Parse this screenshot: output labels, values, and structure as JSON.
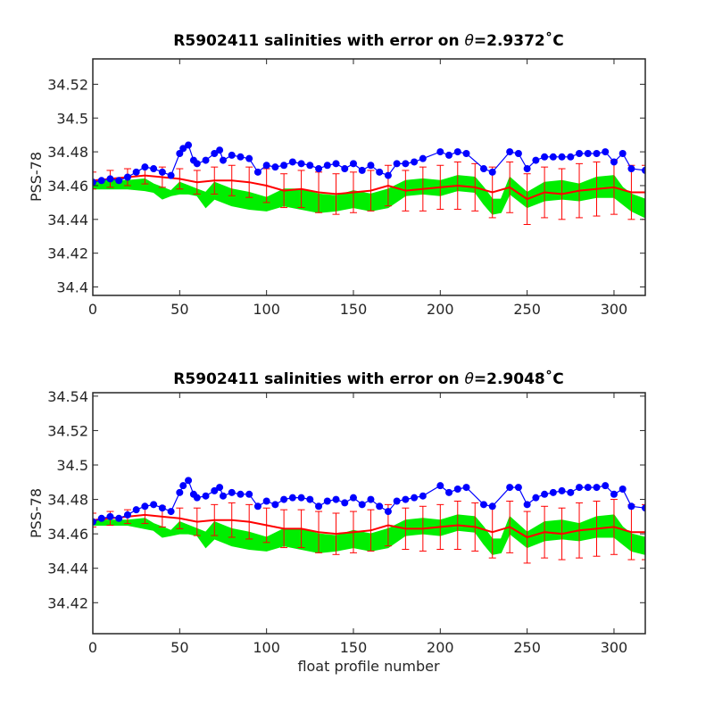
{
  "chart_data": [
    {
      "type": "scatter",
      "title": "R5902411 salinities with error on θ=2.9372˚C",
      "title_prefix": "R5902411 salinities with error on ",
      "title_theta": "θ",
      "title_suffix": "=2.9372˚C",
      "xlabel": "",
      "ylabel": "PSS-78",
      "xlim": [
        0,
        318
      ],
      "ylim": [
        34.395,
        34.535
      ],
      "xticks": [
        0,
        50,
        100,
        150,
        200,
        250,
        300
      ],
      "xtick_labels": [
        "0",
        "50",
        "100",
        "150",
        "200",
        "250",
        "300"
      ],
      "yticks": [
        34.4,
        34.42,
        34.44,
        34.46,
        34.48,
        34.5,
        34.52
      ],
      "ytick_labels": [
        "34.4",
        "34.42",
        "34.44",
        "34.46",
        "34.48",
        "34.5",
        "34.52"
      ],
      "grid": false,
      "colors": {
        "float_salinity": "#0000ff",
        "mapped_salinity": "#ff0000",
        "error_envelope": "#00ee00"
      },
      "float_salinity": {
        "x": [
          0,
          5,
          10,
          15,
          20,
          25,
          30,
          35,
          40,
          45,
          50,
          52,
          55,
          58,
          60,
          65,
          70,
          73,
          75,
          80,
          85,
          90,
          95,
          100,
          105,
          110,
          115,
          120,
          125,
          130,
          135,
          140,
          145,
          150,
          155,
          160,
          165,
          170,
          175,
          180,
          185,
          190,
          200,
          205,
          210,
          215,
          225,
          230,
          240,
          245,
          250,
          255,
          260,
          265,
          270,
          275,
          280,
          285,
          290,
          295,
          300,
          305,
          310,
          318
        ],
        "y": [
          34.462,
          34.463,
          34.464,
          34.463,
          34.465,
          34.468,
          34.471,
          34.47,
          34.468,
          34.466,
          34.479,
          34.482,
          34.484,
          34.475,
          34.473,
          34.475,
          34.479,
          34.481,
          34.475,
          34.478,
          34.477,
          34.476,
          34.468,
          34.472,
          34.471,
          34.472,
          34.474,
          34.473,
          34.472,
          34.47,
          34.472,
          34.473,
          34.47,
          34.473,
          34.469,
          34.472,
          34.468,
          34.466,
          34.473,
          34.473,
          34.474,
          34.476,
          34.48,
          34.478,
          34.48,
          34.479,
          34.47,
          34.468,
          34.48,
          34.479,
          34.47,
          34.475,
          34.477,
          34.477,
          34.477,
          34.477,
          34.479,
          34.479,
          34.479,
          34.48,
          34.474,
          34.479,
          34.47,
          34.469
        ]
      },
      "mapped_salinity": {
        "x": [
          0,
          10,
          20,
          30,
          40,
          50,
          60,
          70,
          80,
          90,
          100,
          110,
          120,
          130,
          140,
          150,
          160,
          170,
          180,
          190,
          200,
          210,
          220,
          230,
          240,
          250,
          260,
          270,
          280,
          290,
          300,
          310,
          318
        ],
        "y": [
          34.463,
          34.464,
          34.465,
          34.466,
          34.465,
          34.464,
          34.462,
          34.463,
          34.463,
          34.462,
          34.46,
          34.457,
          34.458,
          34.456,
          34.455,
          34.456,
          34.457,
          34.46,
          34.457,
          34.458,
          34.459,
          34.46,
          34.459,
          34.456,
          34.459,
          34.452,
          34.456,
          34.455,
          34.457,
          34.458,
          34.459,
          34.456,
          34.456
        ],
        "err": [
          0.005,
          0.005,
          0.005,
          0.005,
          0.006,
          0.006,
          0.007,
          0.008,
          0.009,
          0.009,
          0.01,
          0.01,
          0.011,
          0.012,
          0.012,
          0.012,
          0.012,
          0.012,
          0.012,
          0.013,
          0.013,
          0.014,
          0.014,
          0.015,
          0.015,
          0.015,
          0.015,
          0.015,
          0.016,
          0.016,
          0.016,
          0.016,
          0.016
        ]
      },
      "error_envelope": {
        "x": [
          0,
          20,
          30,
          35,
          40,
          45,
          50,
          55,
          60,
          65,
          70,
          80,
          90,
          100,
          110,
          120,
          130,
          140,
          150,
          160,
          170,
          180,
          190,
          200,
          210,
          220,
          225,
          230,
          235,
          240,
          250,
          260,
          270,
          280,
          290,
          300,
          305,
          310,
          318
        ],
        "upper": [
          34.463,
          34.463,
          34.464,
          34.461,
          34.459,
          34.457,
          34.462,
          34.46,
          34.458,
          34.456,
          34.462,
          34.458,
          34.456,
          34.453,
          34.458,
          34.458,
          34.455,
          34.454,
          34.457,
          34.455,
          34.458,
          34.463,
          34.464,
          34.463,
          34.466,
          34.465,
          34.459,
          34.452,
          34.452,
          34.465,
          34.456,
          34.462,
          34.463,
          34.461,
          34.465,
          34.466,
          34.459,
          34.455,
          34.452
        ],
        "lower": [
          34.458,
          34.458,
          34.457,
          34.456,
          34.452,
          34.454,
          34.455,
          34.455,
          34.454,
          34.447,
          34.452,
          34.448,
          34.446,
          34.445,
          34.448,
          34.446,
          34.444,
          34.445,
          34.447,
          34.445,
          34.447,
          34.454,
          34.455,
          34.454,
          34.457,
          34.456,
          34.449,
          34.443,
          34.444,
          34.455,
          34.447,
          34.451,
          34.452,
          34.451,
          34.453,
          34.453,
          34.449,
          34.445,
          34.441
        ]
      }
    },
    {
      "type": "scatter",
      "title": "R5902411 salinities with error on θ=2.9048˚C",
      "title_prefix": "R5902411 salinities with error on ",
      "title_theta": "θ",
      "title_suffix": "=2.9048˚C",
      "xlabel": "float profile number",
      "ylabel": "PSS-78",
      "xlim": [
        0,
        318
      ],
      "ylim": [
        34.402,
        34.542
      ],
      "xticks": [
        0,
        50,
        100,
        150,
        200,
        250,
        300
      ],
      "xtick_labels": [
        "0",
        "50",
        "100",
        "150",
        "200",
        "250",
        "300"
      ],
      "yticks": [
        34.42,
        34.44,
        34.46,
        34.48,
        34.5,
        34.52,
        34.54
      ],
      "ytick_labels": [
        "34.42",
        "34.44",
        "34.46",
        "34.48",
        "34.5",
        "34.52",
        "34.54"
      ],
      "grid": false,
      "colors": {
        "float_salinity": "#0000ff",
        "mapped_salinity": "#ff0000",
        "error_envelope": "#00ee00"
      },
      "float_salinity": {
        "x": [
          0,
          5,
          10,
          15,
          20,
          25,
          30,
          35,
          40,
          45,
          50,
          52,
          55,
          58,
          60,
          65,
          70,
          73,
          75,
          80,
          85,
          90,
          95,
          100,
          105,
          110,
          115,
          120,
          125,
          130,
          135,
          140,
          145,
          150,
          155,
          160,
          165,
          170,
          175,
          180,
          185,
          190,
          200,
          205,
          210,
          215,
          225,
          230,
          240,
          245,
          250,
          255,
          260,
          265,
          270,
          275,
          280,
          285,
          290,
          295,
          300,
          305,
          310,
          318
        ],
        "y": [
          34.467,
          34.469,
          34.47,
          34.469,
          34.471,
          34.474,
          34.476,
          34.477,
          34.475,
          34.473,
          34.484,
          34.488,
          34.491,
          34.483,
          34.481,
          34.482,
          34.485,
          34.487,
          34.482,
          34.484,
          34.483,
          34.483,
          34.476,
          34.479,
          34.477,
          34.48,
          34.481,
          34.481,
          34.48,
          34.476,
          34.479,
          34.48,
          34.478,
          34.481,
          34.477,
          34.48,
          34.476,
          34.473,
          34.479,
          34.48,
          34.481,
          34.482,
          34.488,
          34.484,
          34.486,
          34.487,
          34.477,
          34.476,
          34.487,
          34.487,
          34.477,
          34.481,
          34.483,
          34.484,
          34.485,
          34.484,
          34.487,
          34.487,
          34.487,
          34.488,
          34.483,
          34.486,
          34.476,
          34.475
        ]
      },
      "mapped_salinity": {
        "x": [
          0,
          10,
          20,
          30,
          40,
          50,
          60,
          70,
          80,
          90,
          100,
          110,
          120,
          130,
          140,
          150,
          160,
          170,
          180,
          190,
          200,
          210,
          220,
          230,
          240,
          250,
          260,
          270,
          280,
          290,
          300,
          310,
          318
        ],
        "y": [
          34.468,
          34.469,
          34.47,
          34.471,
          34.47,
          34.469,
          34.467,
          34.468,
          34.468,
          34.467,
          34.465,
          34.463,
          34.463,
          34.461,
          34.46,
          34.461,
          34.462,
          34.465,
          34.463,
          34.463,
          34.464,
          34.465,
          34.464,
          34.461,
          34.464,
          34.458,
          34.461,
          34.46,
          34.462,
          34.463,
          34.464,
          34.461,
          34.461
        ],
        "err": [
          0.004,
          0.004,
          0.004,
          0.005,
          0.006,
          0.006,
          0.008,
          0.009,
          0.01,
          0.01,
          0.01,
          0.011,
          0.011,
          0.012,
          0.012,
          0.012,
          0.012,
          0.012,
          0.012,
          0.013,
          0.013,
          0.014,
          0.014,
          0.015,
          0.015,
          0.015,
          0.015,
          0.015,
          0.016,
          0.016,
          0.016,
          0.016,
          0.016
        ]
      },
      "error_envelope": {
        "x": [
          0,
          20,
          30,
          35,
          40,
          45,
          50,
          55,
          60,
          65,
          70,
          80,
          90,
          100,
          110,
          120,
          130,
          140,
          150,
          160,
          170,
          180,
          190,
          200,
          210,
          220,
          225,
          230,
          235,
          240,
          250,
          260,
          270,
          280,
          290,
          300,
          305,
          310,
          318
        ],
        "upper": [
          34.468,
          34.468,
          34.469,
          34.466,
          34.464,
          34.462,
          34.467,
          34.465,
          34.463,
          34.461,
          34.467,
          34.463,
          34.461,
          34.458,
          34.463,
          34.463,
          34.46,
          34.459,
          34.462,
          34.46,
          34.463,
          34.468,
          34.469,
          34.468,
          34.471,
          34.47,
          34.464,
          34.457,
          34.457,
          34.47,
          34.461,
          34.467,
          34.468,
          34.466,
          34.47,
          34.471,
          34.464,
          34.46,
          34.458
        ],
        "lower": [
          34.465,
          34.465,
          34.463,
          34.462,
          34.458,
          34.459,
          34.46,
          34.46,
          34.459,
          34.452,
          34.457,
          34.453,
          34.451,
          34.45,
          34.453,
          34.451,
          34.449,
          34.45,
          34.452,
          34.45,
          34.452,
          34.459,
          34.46,
          34.459,
          34.462,
          34.461,
          34.454,
          34.448,
          34.449,
          34.46,
          34.452,
          34.456,
          34.457,
          34.456,
          34.458,
          34.458,
          34.454,
          34.45,
          34.448
        ]
      }
    }
  ]
}
